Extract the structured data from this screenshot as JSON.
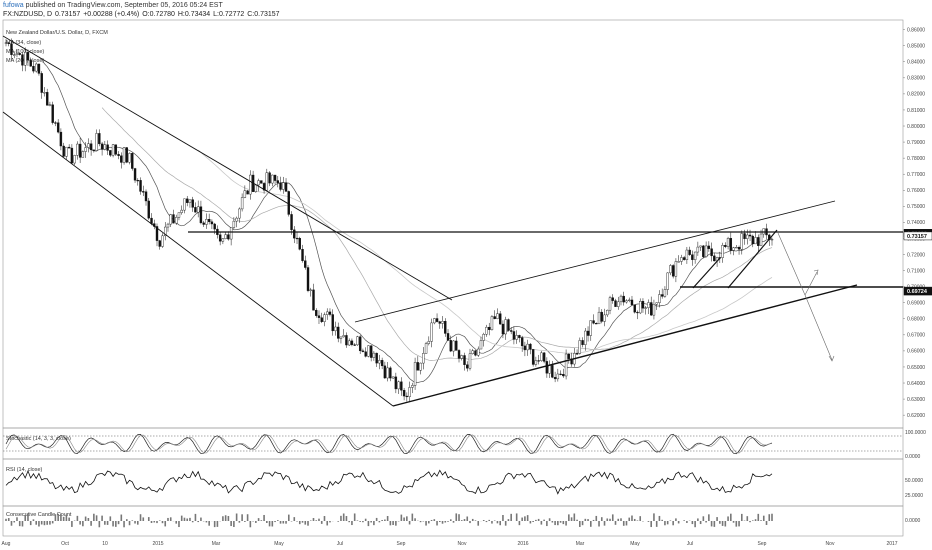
{
  "header": {
    "user": "fufowa",
    "published": " published on TradingView.com, September 05, 2016 05:24 EST"
  },
  "quote": {
    "symbol": "FX:NZDUSD, D",
    "last": "0.73157",
    "change": "+0.00288 (+0.4%)",
    "open": "O:0.72780",
    "high": "H:0.73434",
    "low": "L:0.72772",
    "close": "C:0.73157"
  },
  "chart_data": {
    "type": "candlestick",
    "title": "New Zealand Dollar/U.S. Dollar, D, FXCM",
    "indicators": [
      "MA (34, close)",
      "MA (100, close)",
      "MA (200, close)"
    ],
    "x_ticks": [
      "Aug",
      "Oct",
      "10",
      "2015",
      "Mar",
      "May",
      "Jul",
      "Sep",
      "Nov",
      "2016",
      "Mar",
      "May",
      "Jul",
      "Sep",
      "Nov",
      "2017"
    ],
    "y_ticks": [
      0.86,
      0.85,
      0.84,
      0.83,
      0.82,
      0.81,
      0.8,
      0.79,
      0.78,
      0.77,
      0.76,
      0.75,
      0.74,
      0.73,
      0.72,
      0.71,
      0.7,
      0.69,
      0.68,
      0.67,
      0.66,
      0.65,
      0.64,
      0.63,
      0.62
    ],
    "ylim": [
      0.612,
      0.866
    ],
    "price_tags": [
      {
        "label": "0.73323",
        "value": 0.73323,
        "color": "#222222"
      },
      {
        "label": "0.73157",
        "value": 0.73157,
        "color": "#ffffff"
      },
      {
        "label": "0.69724",
        "value": 0.69724,
        "color": "#222222"
      }
    ],
    "price_path": [
      [
        "Aug",
        0.852
      ],
      [
        "Sep",
        0.835
      ],
      [
        "Oct",
        0.78
      ],
      [
        "10",
        0.79
      ],
      [
        "2015",
        0.78
      ],
      [
        "Jan",
        0.73
      ],
      [
        "Feb",
        0.755
      ],
      [
        "Mar",
        0.725
      ],
      [
        "Apr",
        0.765
      ],
      [
        "May",
        0.765
      ],
      [
        "Jun",
        0.69
      ],
      [
        "Jul",
        0.67
      ],
      [
        "Aug",
        0.66
      ],
      [
        "Sep",
        0.63
      ],
      [
        "Oct",
        0.682
      ],
      [
        "Nov",
        0.648
      ],
      [
        "Dec",
        0.68
      ],
      [
        "2016",
        0.66
      ],
      [
        "Feb",
        0.645
      ],
      [
        "Mar",
        0.672
      ],
      [
        "Apr",
        0.695
      ],
      [
        "May",
        0.685
      ],
      [
        "Jun",
        0.72
      ],
      [
        "Jul",
        0.72
      ],
      [
        "Aug",
        0.728
      ],
      [
        "Sep",
        0.7315
      ]
    ],
    "lower_panes": [
      {
        "name": "Stochastic (14, 3, 3, close)",
        "ticks": [
          "100.0000",
          "0.0000"
        ]
      },
      {
        "name": "RSI (14, close)",
        "ticks": [
          "50.0000",
          "25.0000"
        ]
      },
      {
        "name": "Consecutive Candle Count",
        "ticks": [
          "0.0000"
        ]
      }
    ],
    "grid": false
  },
  "colors": {
    "candle": "#111111",
    "ma": "#555555",
    "ma_light": "#aaaaaa",
    "trend": "#111111",
    "tag_dark": "#111111",
    "link": "#2a6ebb"
  }
}
